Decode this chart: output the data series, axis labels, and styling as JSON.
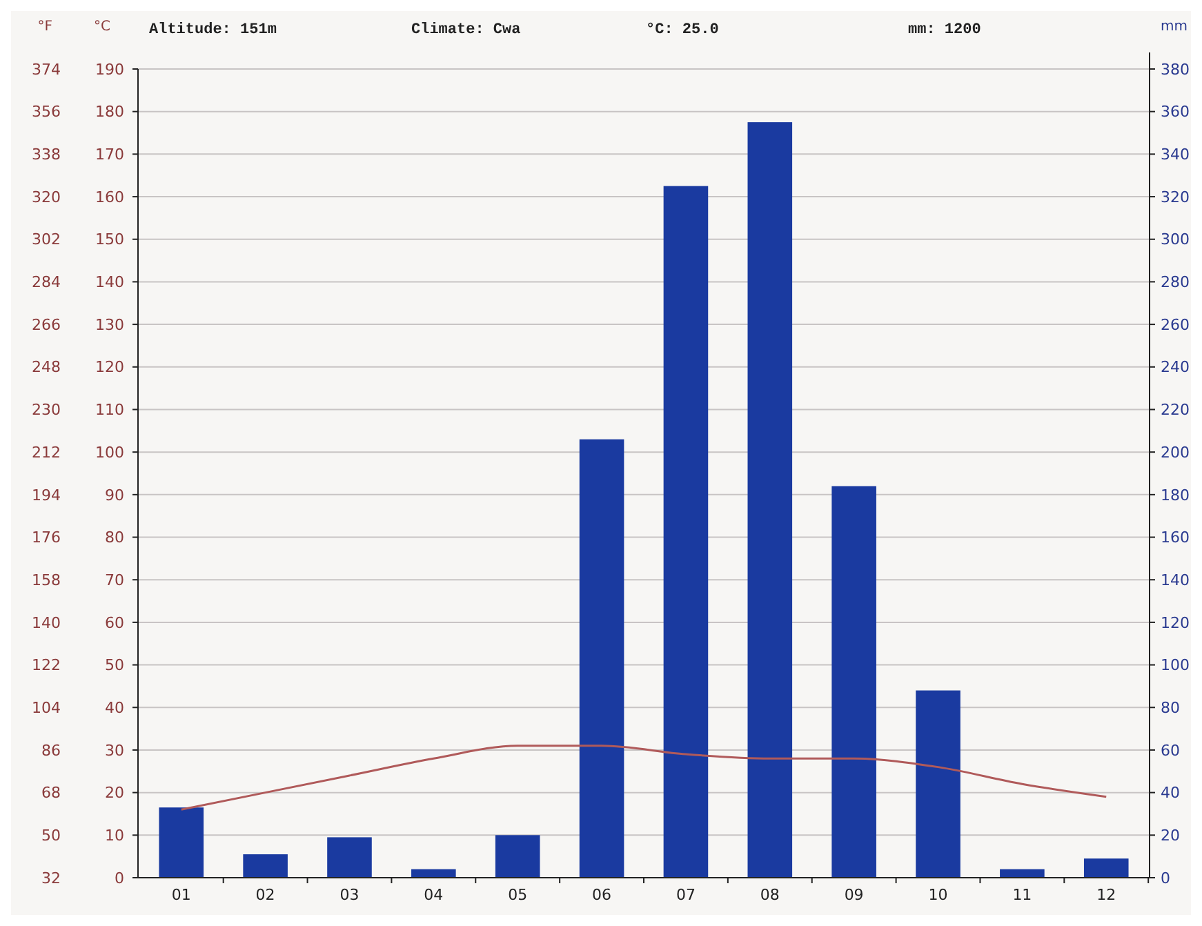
{
  "chart_data": {
    "type": "bar",
    "categories": [
      "01",
      "02",
      "03",
      "04",
      "05",
      "06",
      "07",
      "08",
      "09",
      "10",
      "11",
      "12"
    ],
    "series": [
      {
        "axis": "y2",
        "color": "#1a3aa0",
        "values": [
          33,
          11,
          19,
          4,
          20,
          206,
          325,
          355,
          184,
          88,
          4,
          9
        ]
      },
      {
        "type": "line",
        "axis": "y",
        "color": "#b05a5a",
        "values": [
          16,
          20,
          24,
          28,
          31,
          31,
          29,
          28,
          28,
          26,
          22,
          19
        ]
      }
    ],
    "ylabel": "°C",
    "y2label": "mm",
    "y3label": "°F",
    "ylim": [
      0,
      190
    ],
    "yticks": [
      0,
      10,
      20,
      30,
      40,
      50,
      60,
      70,
      80,
      90,
      100,
      110,
      120,
      130,
      140,
      150,
      160,
      170,
      180,
      190
    ],
    "y2lim": [
      0,
      380
    ],
    "y2ticks": [
      0,
      20,
      40,
      60,
      80,
      100,
      120,
      140,
      160,
      180,
      200,
      220,
      240,
      260,
      280,
      300,
      320,
      340,
      360,
      380
    ],
    "y3lim": [
      32,
      374
    ],
    "y3ticks": [
      32,
      50,
      68,
      86,
      104,
      122,
      140,
      158,
      176,
      194,
      212,
      230,
      248,
      266,
      284,
      302,
      320,
      338,
      356,
      374
    ],
    "grid": "y",
    "marker": "none",
    "line_style": "solid",
    "annotations": [
      "Altitude: 151m",
      "Climate: Cwa",
      "°C: 25.0",
      "mm: 1200"
    ]
  }
}
